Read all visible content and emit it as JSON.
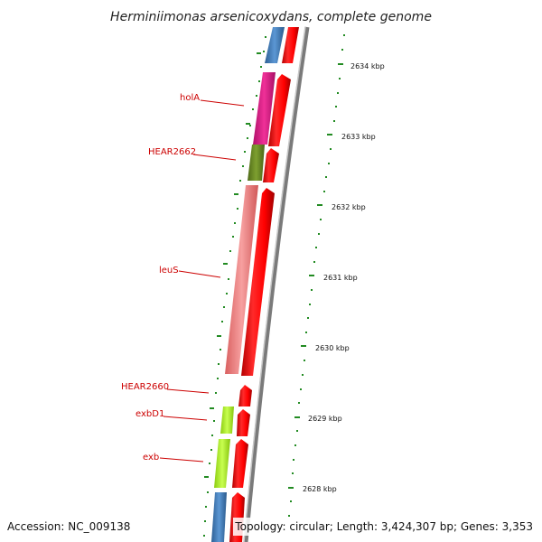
{
  "title": "Herminiimonas arsenicoxydans, complete genome",
  "accession": "Accession: NC_009138",
  "topology": "Topology: circular; Length: 3,424,307 bp; Genes: 3,353",
  "gene_labels": [
    "holA",
    "HEAR2662",
    "leuS",
    "HEAR2660",
    "exbD1",
    "exb"
  ],
  "kbp_labels": [
    "2634 kbp",
    "2633 kbp",
    "2632 kbp",
    "2631 kbp",
    "2630 kbp",
    "2629 kbp",
    "2628 kbp"
  ],
  "colors": {
    "forward_strand": "#ff0000",
    "tick": "#228b22",
    "backbone": "#808080",
    "label_text": "#cc0000",
    "blue_gene": "#4a86c5",
    "magenta_gene": "#e0218a",
    "olive_gene": "#6b8e23",
    "salmon_gene": "#f08080",
    "lime_gene": "#adff2f"
  }
}
